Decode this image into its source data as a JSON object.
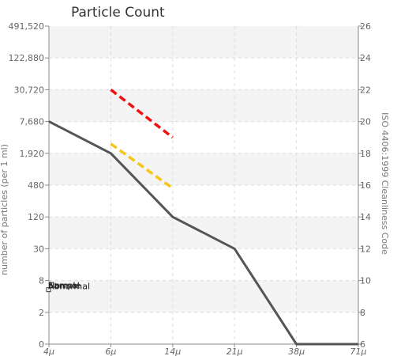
{
  "chart_data": {
    "type": "line",
    "title": "Particle Count",
    "x": [
      "4μ",
      "6μ",
      "14μ",
      "21μ",
      "38μ",
      "71μ"
    ],
    "y_left_ticks": [
      "0",
      "2",
      "8",
      "30",
      "120",
      "480",
      "1,920",
      "7,680",
      "30,720",
      "122,880",
      "491,520"
    ],
    "y_right_ticks": [
      "6",
      "8",
      "10",
      "12",
      "14",
      "16",
      "18",
      "20",
      "22",
      "24",
      "26"
    ],
    "ylabel_left": "number of particles (per 1 ml)",
    "ylabel_right": "ISO 4406:1999 Cleanliness Code",
    "grid": true,
    "series": [
      {
        "name": "Sample",
        "color": "#555555",
        "style": "solid",
        "points": [
          {
            "x": "4μ",
            "code": 20
          },
          {
            "x": "6μ",
            "code": 18
          },
          {
            "x": "14μ",
            "code": 14
          },
          {
            "x": "21μ",
            "code": 12
          },
          {
            "x": "38μ",
            "code": 6
          },
          {
            "x": "71μ",
            "code": 6
          }
        ]
      },
      {
        "name": "Abnormal",
        "color": "#ee1111",
        "style": "dashed",
        "points": [
          {
            "x": "6μ",
            "code": 22
          },
          {
            "x": "14μ",
            "code": 19
          }
        ]
      },
      {
        "name": "Normal",
        "color": "#f5c518",
        "style": "dashed",
        "points": [
          {
            "x": "6μ",
            "code": 18.6
          },
          {
            "x": "14μ",
            "code": 15.8
          }
        ]
      }
    ],
    "legend": {
      "placement": "left-inside",
      "labels": [
        "Sample",
        "Abnormal",
        "Normal"
      ]
    }
  }
}
